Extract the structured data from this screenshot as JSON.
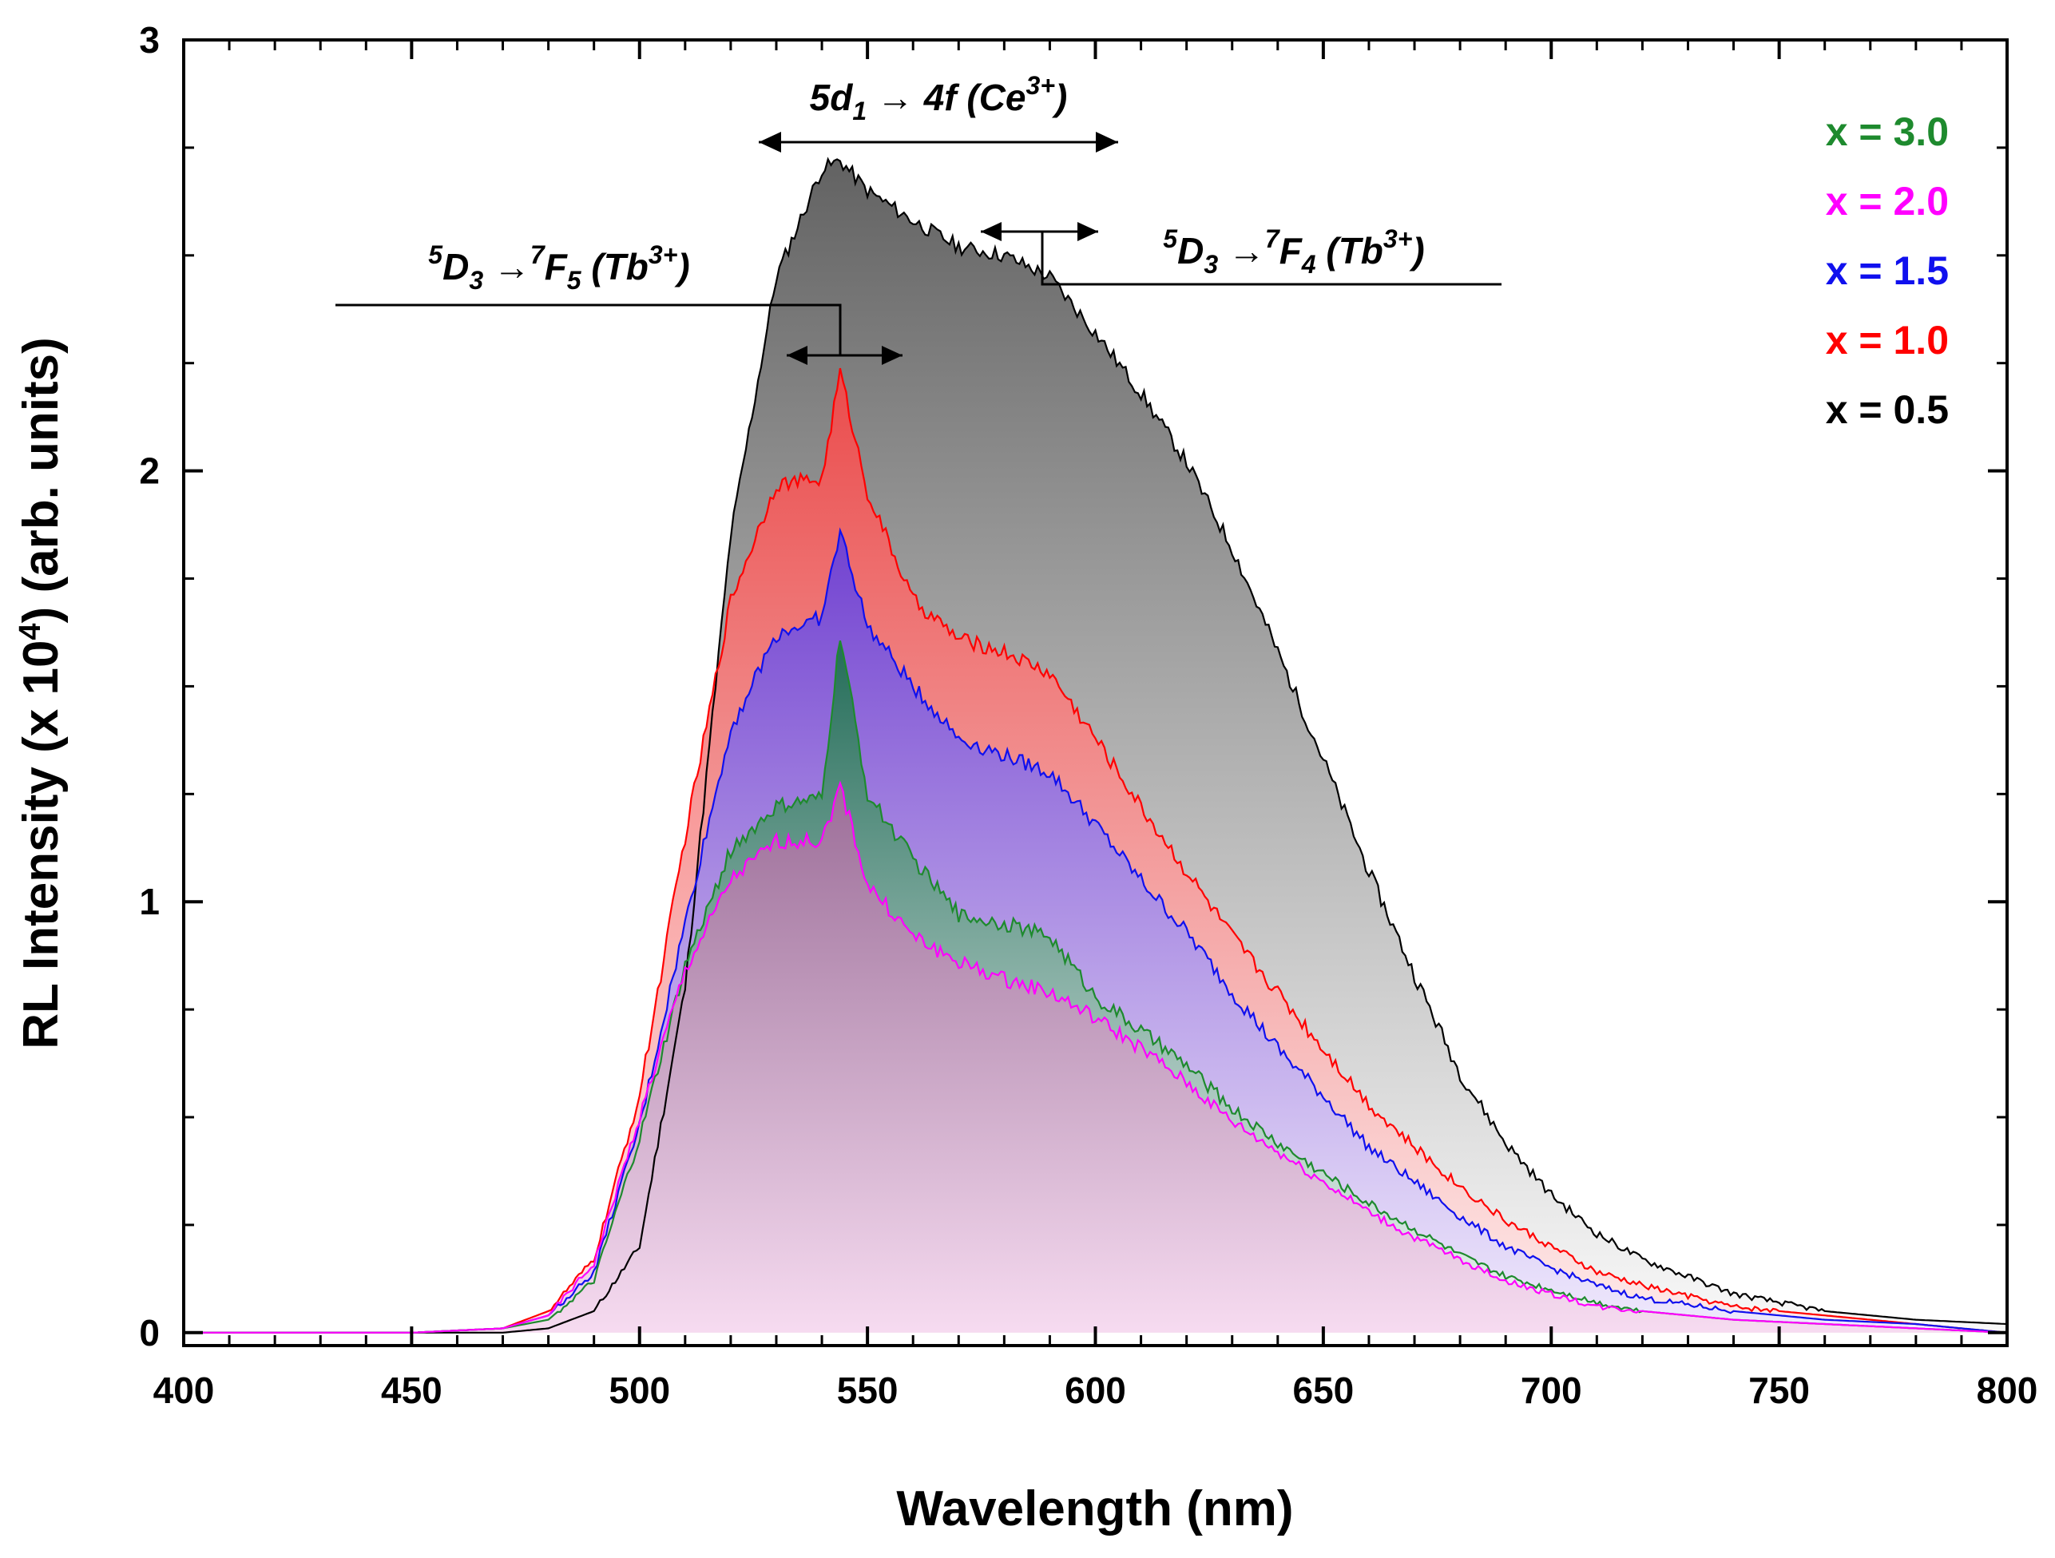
{
  "chart_data": {
    "type": "area",
    "title": "",
    "xlabel": "Wavelength (nm)",
    "ylabel": "RL Intensity (x 10⁴) (arb. units)",
    "xlim": [
      400,
      800
    ],
    "ylim": [
      -0.03,
      3
    ],
    "xticks": [
      400,
      450,
      500,
      550,
      600,
      650,
      700,
      750,
      800
    ],
    "xtick_labels": [
      "400",
      "450",
      "500",
      "550",
      "600",
      "650",
      "700",
      "750",
      "800"
    ],
    "yticks": [
      0,
      1,
      2,
      3
    ],
    "ytick_labels": [
      "0",
      "1",
      "2",
      "3"
    ],
    "grid": false,
    "legend_position": "top-right",
    "x": [
      400,
      450,
      470,
      480,
      490,
      500,
      510,
      520,
      530,
      540,
      544,
      550,
      560,
      570,
      580,
      590,
      600,
      610,
      620,
      630,
      640,
      650,
      660,
      670,
      680,
      690,
      700,
      710,
      720,
      740,
      760,
      780,
      800
    ],
    "series": [
      {
        "name": "x = 3.0",
        "color": "#1e8a2e",
        "fill_top": "#1f6e52",
        "fill_bottom": "#f0f9f3",
        "values": [
          0.0,
          0.0,
          0.01,
          0.03,
          0.12,
          0.45,
          0.85,
          1.12,
          1.22,
          1.24,
          1.62,
          1.25,
          1.1,
          0.97,
          0.95,
          0.92,
          0.78,
          0.7,
          0.62,
          0.52,
          0.44,
          0.37,
          0.3,
          0.24,
          0.18,
          0.13,
          0.1,
          0.07,
          0.05,
          0.03,
          0.02,
          0.01,
          0.0
        ]
      },
      {
        "name": "x = 2.0",
        "color": "#ff00ff",
        "fill_top": "#a06c9a",
        "fill_bottom": "#f7d8f0",
        "values": [
          0.0,
          0.0,
          0.01,
          0.04,
          0.16,
          0.5,
          0.84,
          1.05,
          1.14,
          1.14,
          1.27,
          1.04,
          0.92,
          0.86,
          0.82,
          0.79,
          0.73,
          0.66,
          0.58,
          0.49,
          0.42,
          0.35,
          0.28,
          0.22,
          0.17,
          0.12,
          0.09,
          0.06,
          0.05,
          0.03,
          0.02,
          0.01,
          0.0
        ]
      },
      {
        "name": "x = 1.5",
        "color": "#1010ee",
        "fill_top": "#6a3fd6",
        "fill_bottom": "#eeeaff",
        "values": [
          0.0,
          0.0,
          0.01,
          0.04,
          0.14,
          0.48,
          0.95,
          1.4,
          1.62,
          1.66,
          1.86,
          1.64,
          1.5,
          1.38,
          1.34,
          1.3,
          1.18,
          1.05,
          0.93,
          0.79,
          0.66,
          0.55,
          0.43,
          0.35,
          0.27,
          0.2,
          0.15,
          0.11,
          0.08,
          0.05,
          0.03,
          0.02,
          0.0
        ]
      },
      {
        "name": "x = 1.0",
        "color": "#ff0000",
        "fill_top": "#f04848",
        "fill_bottom": "#ffeaea",
        "values": [
          0.0,
          0.0,
          0.01,
          0.05,
          0.17,
          0.55,
          1.15,
          1.7,
          1.97,
          1.98,
          2.23,
          1.95,
          1.7,
          1.61,
          1.58,
          1.53,
          1.38,
          1.22,
          1.07,
          0.92,
          0.79,
          0.66,
          0.53,
          0.43,
          0.34,
          0.26,
          0.2,
          0.14,
          0.11,
          0.06,
          0.04,
          0.02,
          0.0
        ]
      },
      {
        "name": "x = 0.5",
        "color": "#000000",
        "fill_top": "#5a5a5a",
        "fill_bottom": "#f8f8f8",
        "values": [
          0.0,
          0.0,
          0.0,
          0.01,
          0.05,
          0.2,
          0.8,
          1.85,
          2.45,
          2.7,
          2.72,
          2.65,
          2.58,
          2.52,
          2.5,
          2.45,
          2.32,
          2.18,
          2.02,
          1.82,
          1.58,
          1.33,
          1.07,
          0.83,
          0.6,
          0.44,
          0.32,
          0.23,
          0.17,
          0.09,
          0.05,
          0.03,
          0.02
        ]
      }
    ],
    "annotations": [
      {
        "text": "5d₁ → 4f (Ce³⁺)",
        "x_range": [
          527,
          605
        ]
      },
      {
        "text": "⁵D₃ →⁷F₅ (Tb³⁺)",
        "x_range": [
          532,
          558
        ]
      },
      {
        "text": "⁵D₃ →⁷F₄ (Tb³⁺)",
        "x_range": [
          575,
          590
        ]
      }
    ],
    "legend": [
      "x = 3.0",
      "x = 2.0",
      "x = 1.5",
      "x = 1.0",
      "x = 0.5"
    ]
  }
}
